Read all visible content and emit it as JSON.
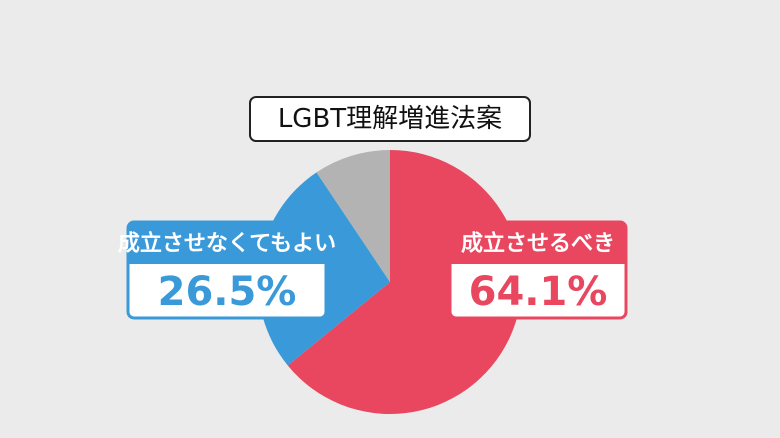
{
  "chart_data": {
    "type": "pie",
    "title": "LGBT理解増進法案",
    "categories": [
      "成立させるべき",
      "成立させなくてもよい",
      null
    ],
    "values": [
      64.1,
      26.5,
      9.4
    ],
    "value_labels": [
      "64.1%",
      "26.5%",
      null
    ],
    "colors": [
      "#e8475f",
      "#3a9ad9",
      "#b3b3b3"
    ]
  }
}
